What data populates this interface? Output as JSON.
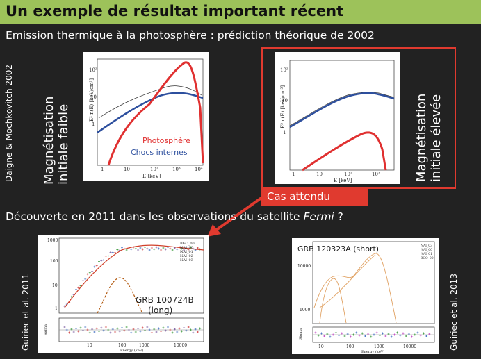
{
  "header": {
    "title": "Un exemple de résultat important récent"
  },
  "subtitle": "Emission thermique à la photosphère : prédiction théorique de 2002",
  "reference_2002": "Daigne & Mochkovitch 2002",
  "left_panel": {
    "label": [
      "Magnétisation",
      "initiale faible"
    ],
    "plot": {
      "legend": [
        "Photosphère",
        "Chocs internes"
      ],
      "xlabel": "E [keV]",
      "ylabel": "E² n(E) [keV/cm²]",
      "xticks": [
        "1",
        "10",
        "10²",
        "10³",
        "10⁴"
      ],
      "yticks": [
        "10²",
        "10",
        "1"
      ]
    }
  },
  "right_panel": {
    "label": [
      "Magnétisation",
      "initiale élevée"
    ],
    "plot": {
      "xlabel": "E [keV]",
      "ylabel": "E² n(E) [keV/cm²]",
      "xticks": [
        "1",
        "10",
        "10²",
        "10³"
      ],
      "yticks": [
        "10²",
        "10",
        "1"
      ]
    },
    "callout": "Cas attendu"
  },
  "discovery": {
    "text": "Découverte en 2011 dans les observations du satellite ",
    "emphasis": "Fermi",
    "end": " ?"
  },
  "bottom_left": {
    "reference": "Guiriec et al. 2011",
    "grb": "GRB 100724B",
    "kind": "(long)",
    "legend": [
      "BGO_00",
      "NAI_00",
      "NAI_01",
      "NAI_02",
      "NAI_03"
    ],
    "xlabel": "Energy (keV)",
    "residual_label": "Sigma",
    "xticks": [
      "10",
      "100",
      "1000",
      "10000"
    ],
    "yticks": [
      "1000",
      "100",
      "10",
      "1"
    ]
  },
  "bottom_right": {
    "reference": "Guiriec et al. 2013",
    "grb": "GRB 120323A (short)",
    "legend": [
      "NAI_03",
      "NAI_00",
      "NAI_01",
      "BGO_00"
    ],
    "xlabel": "Energy (keV)",
    "residual_label": "Sigma",
    "xticks": [
      "10",
      "100",
      "1000",
      "10000"
    ],
    "yticks": [
      "10000",
      "1000"
    ]
  }
}
